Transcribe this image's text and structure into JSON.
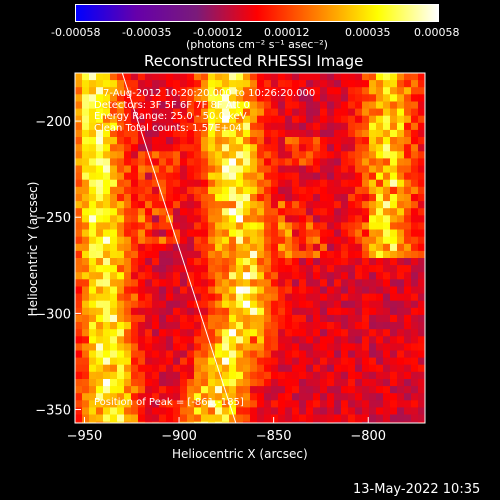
{
  "chart_data": {
    "type": "heatmap",
    "title": "Reconstructed RHESSI Image",
    "xlabel": "Heliocentric X (arcsec)",
    "ylabel": "Heliocentric Y (arcsec)",
    "xlim": [
      -955,
      -770
    ],
    "ylim": [
      -357,
      -175
    ],
    "x_ticks": [
      -950,
      -900,
      -850,
      -800
    ],
    "y_ticks": [
      -200,
      -250,
      -300,
      -350
    ],
    "colorbar": {
      "ticks": [
        "-0.00058",
        "-0.00035",
        "-0.00012",
        "0.00012",
        "0.00035",
        "0.00058"
      ],
      "unit_label": "(photons cm⁻² s⁻¹ asec⁻²)",
      "range": [
        -0.00058,
        0.00058
      ],
      "colors": [
        "#0000ff",
        "#6600aa",
        "#7a1b7a",
        "#ff0000",
        "#ff8000",
        "#ffff00",
        "#ffffff"
      ]
    },
    "annotations": [
      "7-Aug-2012 10:20:20.000 to 10:26:20.000",
      "Detectors: 3F 5F 6F 7F 8F  Att 0",
      "Energy Range: 25.0 - 50.0 keV",
      "Clean    Total counts: 1.57E+04",
      "Position of Peak = [-861,-185]"
    ],
    "peak": [
      -861,
      -185
    ],
    "limb_curve": {
      "x": [
        -930,
        -900,
        -870
      ],
      "y": [
        -175,
        -265,
        -357
      ]
    },
    "emission_bands": [
      {
        "name": "band-left",
        "x_center_at_top": -945,
        "slope": 0.05,
        "width": 14,
        "intensity": 0.0005
      },
      {
        "name": "band-middle",
        "x_center_at_top": -875,
        "slope": 0.08,
        "width": 16,
        "intensity": 0.00052
      },
      {
        "name": "band-right",
        "x_center": -790,
        "y_range": [
          -175,
          -270
        ],
        "width": 14,
        "intensity": 0.00045
      }
    ]
  },
  "footer": {
    "date": "13-May-2022 10:35"
  }
}
